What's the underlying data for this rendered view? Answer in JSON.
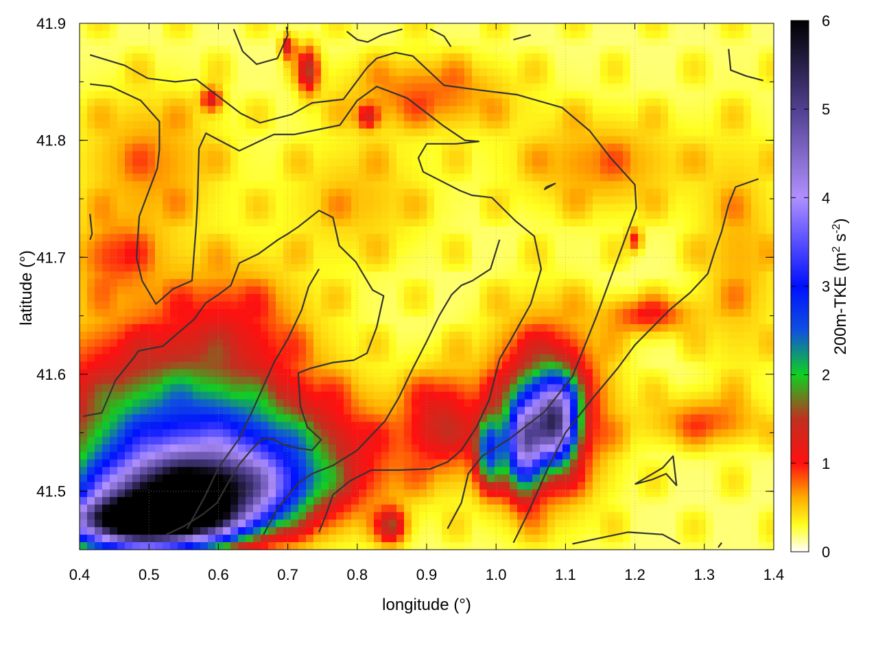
{
  "chart_data": {
    "type": "heatmap",
    "xlabel": "longitude (°)",
    "ylabel": "latitude (°)",
    "colorbar_label": "200m-TKE (m² s⁻²)",
    "colorbar_label_parts": {
      "base": "200m-TKE (m",
      "sup1": "2",
      "mid": " s",
      "sup2": "-2",
      "end": ")"
    },
    "xlim": [
      0.4,
      1.4
    ],
    "ylim": [
      41.45,
      41.9
    ],
    "x_ticks": [
      "0.4",
      "0.5",
      "0.6",
      "0.7",
      "0.8",
      "0.9",
      "1.0",
      "1.1",
      "1.2",
      "1.3",
      "1.4"
    ],
    "y_ticks": [
      "41.5",
      "41.6",
      "41.7",
      "41.8",
      "41.9"
    ],
    "colorbar_range": [
      0,
      6
    ],
    "colorbar_ticks": [
      "0",
      "1",
      "2",
      "3",
      "4",
      "5",
      "6"
    ],
    "colormap": [
      {
        "v": 0.0,
        "color": "#ffffff"
      },
      {
        "v": 0.3,
        "color": "#ffff20"
      },
      {
        "v": 0.6,
        "color": "#ffb000"
      },
      {
        "v": 1.0,
        "color": "#ff1010"
      },
      {
        "v": 1.5,
        "color": "#c03020"
      },
      {
        "v": 2.0,
        "color": "#10d020"
      },
      {
        "v": 2.5,
        "color": "#1050e0"
      },
      {
        "v": 3.0,
        "color": "#0010ff"
      },
      {
        "v": 4.0,
        "color": "#b090ff"
      },
      {
        "v": 5.0,
        "color": "#504090"
      },
      {
        "v": 6.0,
        "color": "#000000"
      }
    ],
    "grid": true,
    "contour_color": "#333333",
    "tke_features": [
      {
        "lon": 0.5,
        "lat": 41.475,
        "value": 5.8,
        "rlon": 0.12,
        "rlat": 0.02
      },
      {
        "lon": 0.56,
        "lat": 41.5,
        "value": 4.2,
        "rlon": 0.14,
        "rlat": 0.03
      },
      {
        "lon": 0.6,
        "lat": 41.53,
        "value": 2.3,
        "rlon": 0.2,
        "rlat": 0.05
      },
      {
        "lon": 0.53,
        "lat": 41.58,
        "value": 1.3,
        "rlon": 0.18,
        "rlat": 0.07
      },
      {
        "lon": 0.48,
        "lat": 41.45,
        "value": 1.2,
        "rlon": 0.12,
        "rlat": 0.02
      },
      {
        "lon": 1.085,
        "lat": 41.56,
        "value": 3.6,
        "rlon": 0.03,
        "rlat": 0.035
      },
      {
        "lon": 1.04,
        "lat": 41.54,
        "value": 3.0,
        "rlon": 0.025,
        "rlat": 0.04
      },
      {
        "lon": 0.99,
        "lat": 41.535,
        "value": 2.0,
        "rlon": 0.02,
        "rlat": 0.03
      },
      {
        "lon": 1.07,
        "lat": 41.57,
        "value": 1.6,
        "rlon": 0.08,
        "rlat": 0.07
      },
      {
        "lon": 0.92,
        "lat": 41.56,
        "value": 1.0,
        "rlon": 0.05,
        "rlat": 0.04
      },
      {
        "lon": 0.85,
        "lat": 41.47,
        "value": 1.2,
        "rlon": 0.02,
        "rlat": 0.015
      },
      {
        "lon": 0.73,
        "lat": 41.86,
        "value": 1.2,
        "rlon": 0.015,
        "rlat": 0.02
      },
      {
        "lon": 0.7,
        "lat": 41.88,
        "value": 1.1,
        "rlon": 0.01,
        "rlat": 0.01
      },
      {
        "lon": 0.59,
        "lat": 41.835,
        "value": 1.0,
        "rlon": 0.015,
        "rlat": 0.01
      },
      {
        "lon": 0.815,
        "lat": 41.82,
        "value": 0.9,
        "rlon": 0.015,
        "rlat": 0.01
      },
      {
        "lon": 1.2,
        "lat": 41.715,
        "value": 0.8,
        "rlon": 0.01,
        "rlat": 0.01
      },
      {
        "lon": 1.22,
        "lat": 41.65,
        "value": 0.8,
        "rlon": 0.06,
        "rlat": 0.015
      },
      {
        "lon": 1.3,
        "lat": 41.56,
        "value": 0.6,
        "rlon": 0.08,
        "rlat": 0.02
      },
      {
        "lon": 0.9,
        "lat": 41.84,
        "value": 0.6,
        "rlon": 0.12,
        "rlat": 0.03
      },
      {
        "lon": 1.15,
        "lat": 41.78,
        "value": 0.5,
        "rlon": 0.12,
        "rlat": 0.04
      },
      {
        "lon": 0.5,
        "lat": 41.78,
        "value": 0.5,
        "rlon": 0.1,
        "rlat": 0.06
      },
      {
        "lon": 0.45,
        "lat": 41.7,
        "value": 0.6,
        "rlon": 0.06,
        "rlat": 0.03
      },
      {
        "lon": 1.35,
        "lat": 41.7,
        "value": 0.4,
        "rlon": 0.06,
        "rlat": 0.1
      },
      {
        "lon": 0.8,
        "lat": 41.75,
        "value": 0.35,
        "rlon": 0.1,
        "rlat": 0.05
      },
      {
        "lon": 0.62,
        "lat": 41.65,
        "value": 0.5,
        "rlon": 0.1,
        "rlat": 0.05
      }
    ],
    "contours": [
      [
        [
          0.415,
          41.873
        ],
        [
          0.465,
          41.864
        ],
        [
          0.498,
          41.853
        ],
        [
          0.538,
          41.85
        ],
        [
          0.568,
          41.852
        ],
        [
          0.632,
          41.823
        ],
        [
          0.66,
          41.815
        ],
        [
          0.705,
          41.822
        ],
        [
          0.735,
          41.832
        ],
        [
          0.78,
          41.835
        ],
        [
          0.814,
          41.862
        ],
        [
          0.828,
          41.87
        ],
        [
          0.855,
          41.875
        ],
        [
          0.88,
          41.872
        ],
        [
          0.925,
          41.847
        ],
        [
          0.975,
          41.843
        ],
        [
          1.03,
          41.839
        ],
        [
          1.095,
          41.828
        ],
        [
          1.135,
          41.808
        ],
        [
          1.165,
          41.785
        ],
        [
          1.2,
          41.762
        ],
        [
          1.202,
          41.742
        ],
        [
          1.178,
          41.703
        ],
        [
          1.145,
          41.65
        ],
        [
          1.11,
          41.598
        ],
        [
          1.07,
          41.568
        ],
        [
          1.02,
          41.545
        ],
        [
          0.98,
          41.53
        ],
        [
          0.96,
          41.515
        ],
        [
          0.95,
          41.49
        ],
        [
          0.93,
          41.468
        ]
      ],
      [
        [
          0.415,
          41.848
        ],
        [
          0.445,
          41.846
        ],
        [
          0.488,
          41.834
        ],
        [
          0.515,
          41.816
        ],
        [
          0.515,
          41.792
        ],
        [
          0.512,
          41.776
        ],
        [
          0.486,
          41.735
        ],
        [
          0.482,
          41.7
        ],
        [
          0.49,
          41.68
        ],
        [
          0.51,
          41.66
        ],
        [
          0.535,
          41.673
        ],
        [
          0.562,
          41.68
        ],
        [
          0.568,
          41.727
        ],
        [
          0.57,
          41.75
        ],
        [
          0.572,
          41.793
        ],
        [
          0.582,
          41.806
        ],
        [
          0.63,
          41.791
        ],
        [
          0.68,
          41.805
        ],
        [
          0.71,
          41.805
        ],
        [
          0.775,
          41.813
        ],
        [
          0.8,
          41.834
        ],
        [
          0.828,
          41.846
        ],
        [
          0.872,
          41.836
        ],
        [
          0.925,
          41.812
        ],
        [
          0.955,
          41.8
        ],
        [
          0.975,
          41.799
        ],
        [
          0.942,
          41.797
        ],
        [
          0.9,
          41.797
        ],
        [
          0.888,
          41.785
        ],
        [
          0.895,
          41.773
        ],
        [
          0.948,
          41.757
        ],
        [
          0.965,
          41.753
        ],
        [
          0.994,
          41.751
        ],
        [
          1.028,
          41.731
        ],
        [
          1.055,
          41.718
        ],
        [
          1.065,
          41.69
        ],
        [
          1.05,
          41.66
        ],
        [
          1.02,
          41.628
        ],
        [
          1.005,
          41.613
        ],
        [
          0.99,
          41.578
        ],
        [
          0.972,
          41.555
        ],
        [
          0.95,
          41.535
        ],
        [
          0.93,
          41.525
        ],
        [
          0.905,
          41.519
        ],
        [
          0.86,
          41.518
        ],
        [
          0.82,
          41.518
        ],
        [
          0.79,
          41.509
        ],
        [
          0.765,
          41.497
        ],
        [
          0.755,
          41.48
        ],
        [
          0.745,
          41.465
        ]
      ],
      [
        [
          0.405,
          41.564
        ],
        [
          0.432,
          41.567
        ],
        [
          0.452,
          41.595
        ],
        [
          0.478,
          41.614
        ],
        [
          0.485,
          41.62
        ],
        [
          0.52,
          41.624
        ],
        [
          0.565,
          41.647
        ],
        [
          0.582,
          41.661
        ],
        [
          0.6,
          41.668
        ],
        [
          0.618,
          41.676
        ],
        [
          0.63,
          41.695
        ],
        [
          0.658,
          41.703
        ],
        [
          0.686,
          41.715
        ],
        [
          0.7,
          41.72
        ],
        [
          0.715,
          41.726
        ],
        [
          0.73,
          41.733
        ],
        [
          0.745,
          41.74
        ],
        [
          0.765,
          41.734
        ],
        [
          0.774,
          41.71
        ],
        [
          0.798,
          41.696
        ],
        [
          0.822,
          41.672
        ],
        [
          0.838,
          41.667
        ],
        [
          0.828,
          41.64
        ],
        [
          0.814,
          41.618
        ],
        [
          0.795,
          41.612
        ],
        [
          0.765,
          41.61
        ],
        [
          0.732,
          41.605
        ],
        [
          0.715,
          41.601
        ],
        [
          0.718,
          41.573
        ],
        [
          0.728,
          41.555
        ],
        [
          0.748,
          41.544
        ],
        [
          0.735,
          41.535
        ],
        [
          0.712,
          41.537
        ],
        [
          0.693,
          41.54
        ],
        [
          0.678,
          41.545
        ],
        [
          0.664,
          41.545
        ],
        [
          0.65,
          41.537
        ],
        [
          0.63,
          41.523
        ],
        [
          0.612,
          41.505
        ],
        [
          0.598,
          41.49
        ],
        [
          0.577,
          41.48
        ],
        [
          0.55,
          41.47
        ],
        [
          0.525,
          41.463
        ]
      ],
      [
        [
          0.665,
          41.463
        ],
        [
          0.685,
          41.485
        ],
        [
          0.715,
          41.507
        ],
        [
          0.735,
          41.515
        ],
        [
          0.765,
          41.522
        ],
        [
          0.8,
          41.535
        ],
        [
          0.84,
          41.56
        ],
        [
          0.86,
          41.58
        ],
        [
          0.88,
          41.605
        ],
        [
          0.9,
          41.628
        ],
        [
          0.918,
          41.65
        ],
        [
          0.936,
          41.668
        ],
        [
          0.95,
          41.676
        ],
        [
          0.966,
          41.68
        ],
        [
          0.992,
          41.69
        ],
        [
          1.005,
          41.715
        ]
      ],
      [
        [
          0.555,
          41.468
        ],
        [
          0.58,
          41.495
        ],
        [
          0.6,
          41.52
        ],
        [
          0.63,
          41.545
        ],
        [
          0.65,
          41.57
        ],
        [
          0.665,
          41.59
        ],
        [
          0.68,
          41.61
        ],
        [
          0.7,
          41.63
        ],
        [
          0.72,
          41.655
        ],
        [
          0.73,
          41.675
        ],
        [
          0.745,
          41.69
        ]
      ],
      [
        [
          1.025,
          41.456
        ],
        [
          1.045,
          41.48
        ],
        [
          1.06,
          41.5
        ],
        [
          1.075,
          41.52
        ],
        [
          1.1,
          41.55
        ],
        [
          1.14,
          41.58
        ],
        [
          1.175,
          41.605
        ],
        [
          1.2,
          41.625
        ],
        [
          1.225,
          41.64
        ],
        [
          1.25,
          41.655
        ],
        [
          1.28,
          41.67
        ],
        [
          1.305,
          41.686
        ],
        [
          1.315,
          41.705
        ],
        [
          1.325,
          41.722
        ],
        [
          1.335,
          41.745
        ],
        [
          1.345,
          41.76
        ],
        [
          1.378,
          41.767
        ]
      ],
      [
        [
          1.11,
          41.455
        ],
        [
          1.15,
          41.46
        ],
        [
          1.19,
          41.465
        ],
        [
          1.24,
          41.463
        ],
        [
          1.265,
          41.455
        ]
      ],
      [
        [
          1.2,
          41.506
        ],
        [
          1.225,
          41.51
        ],
        [
          1.245,
          41.515
        ],
        [
          1.26,
          41.505
        ],
        [
          1.255,
          41.53
        ],
        [
          1.24,
          41.52
        ],
        [
          1.2,
          41.506
        ]
      ],
      [
        [
          1.335,
          41.878
        ],
        [
          1.338,
          41.86
        ],
        [
          1.36,
          41.855
        ],
        [
          1.385,
          41.851
        ]
      ],
      [
        [
          0.415,
          41.737
        ],
        [
          0.418,
          41.72
        ],
        [
          0.415,
          41.715
        ]
      ],
      [
        [
          0.622,
          41.895
        ],
        [
          0.635,
          41.876
        ],
        [
          0.655,
          41.865
        ],
        [
          0.685,
          41.87
        ],
        [
          0.7,
          41.89
        ],
        [
          0.698,
          41.897
        ]
      ],
      [
        [
          0.785,
          41.893
        ],
        [
          0.8,
          41.886
        ],
        [
          0.815,
          41.884
        ],
        [
          0.835,
          41.89
        ],
        [
          0.865,
          41.895
        ]
      ],
      [
        [
          0.905,
          41.895
        ],
        [
          0.925,
          41.889
        ],
        [
          0.935,
          41.88
        ]
      ],
      [
        [
          1.025,
          41.886
        ],
        [
          1.05,
          41.89
        ]
      ],
      [
        [
          1.072,
          41.76
        ],
        [
          1.085,
          41.763
        ],
        [
          1.07,
          41.758
        ],
        [
          1.072,
          41.76
        ]
      ],
      [
        [
          1.32,
          41.452
        ],
        [
          1.325,
          41.456
        ]
      ]
    ]
  }
}
